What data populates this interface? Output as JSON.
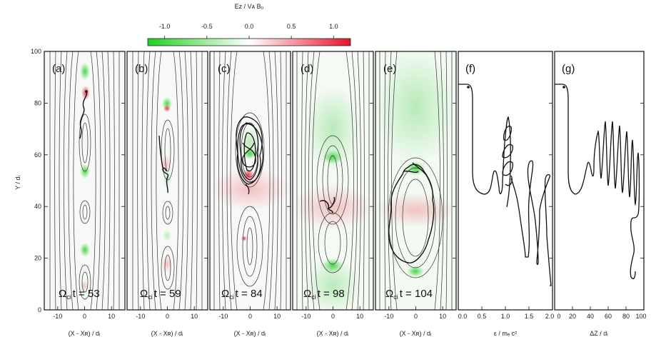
{
  "chart_data": {
    "type": "multi-panel field map with particle trajectories",
    "colorbar": {
      "title": "E_z / V_A B_0",
      "range": [
        -1.2,
        1.2
      ],
      "ticks": [
        -1.0,
        -0.5,
        0.0,
        0.5,
        1.0
      ],
      "tick_labels": [
        "-1.0",
        "-0.5",
        "0.0",
        "0.5",
        "1.0"
      ],
      "colors": {
        "negative": "#1fd11f",
        "zero": "#ffffff",
        "positive": "#e8122a"
      }
    },
    "y_axis": {
      "label": "Y / d_i",
      "range": [
        0,
        100
      ],
      "ticks": [
        0,
        20,
        40,
        60,
        80,
        100
      ]
    },
    "field_panels": [
      {
        "label": "(a)",
        "time_label": "Ω",
        "time_sub": "ci",
        "time_value": "t = 53",
        "xlabel": "(X - X_R) / d_i",
        "xlim": [
          -15,
          15
        ],
        "xticks": [
          -10,
          0,
          10
        ],
        "xtick_labels": [
          "-10",
          "0",
          "10"
        ]
      },
      {
        "label": "(b)",
        "time_label": "Ω",
        "time_sub": "ci",
        "time_value": "t = 59",
        "xlabel": "(X - X_R) / d_i",
        "xlim": [
          -15,
          15
        ],
        "xticks": [
          -10,
          0,
          10
        ],
        "xtick_labels": [
          "-10",
          "0",
          "10"
        ]
      },
      {
        "label": "(c)",
        "time_label": "Ω",
        "time_sub": "ci",
        "time_value": "t = 84",
        "xlabel": "(X - X_R) / d_i",
        "xlim": [
          -15,
          15
        ],
        "xticks": [
          -10,
          0,
          10
        ],
        "xtick_labels": [
          "-10",
          "0",
          "10"
        ]
      },
      {
        "label": "(d)",
        "time_label": "Ω",
        "time_sub": "ci",
        "time_value": "t = 98",
        "xlabel": "(X - X_R) / d_i",
        "xlim": [
          -15,
          15
        ],
        "xticks": [
          -10,
          0,
          10
        ],
        "xtick_labels": [
          "-10",
          "0",
          "10"
        ]
      },
      {
        "label": "(e)",
        "time_label": "Ω",
        "time_sub": "ci",
        "time_value": "t = 104",
        "xlabel": "(X - X_R) / d_i",
        "xlim": [
          -15,
          15
        ],
        "xticks": [
          -10,
          0,
          10
        ],
        "xtick_labels": [
          "-10",
          "0",
          "10"
        ]
      }
    ],
    "line_panels": [
      {
        "label": "(f)",
        "xlabel": "ε / m_e c^2",
        "xlim": [
          0,
          2.0
        ],
        "xticks": [
          0,
          0.5,
          1.0,
          1.5,
          2.0
        ],
        "xtick_labels": [
          "0.0",
          "0.5",
          "1.0",
          "1.5",
          "2.0"
        ]
      },
      {
        "label": "(g)",
        "xlabel": "ΔZ / d_i",
        "xlim": [
          0,
          100
        ],
        "xticks": [
          0,
          20,
          40,
          60,
          80,
          100
        ],
        "xtick_labels": [
          "0",
          "20",
          "40",
          "60",
          "80",
          "100"
        ]
      }
    ]
  }
}
